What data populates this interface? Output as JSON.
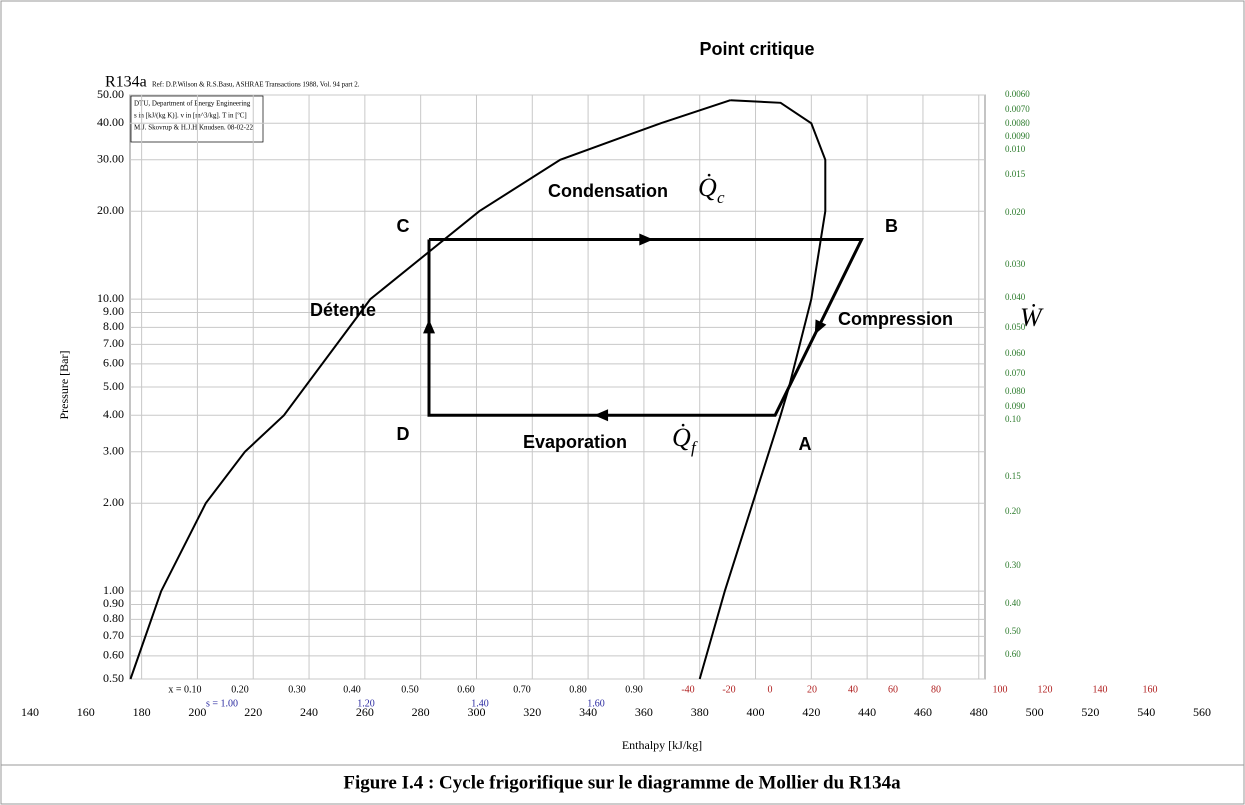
{
  "chart_data": {
    "type": "line",
    "title": "R134a",
    "subtitle": "Ref: D.P.Wilson & R.S.Basu, ASHRAE Transactions 1988, Vol. 94 part 2.",
    "info": [
      "DTU, Department of Energy Engineering",
      "s in [kJ/(kg K)]. v in [m^3/kg]. T in [ºC]",
      "M.J. Skovrup & H.J.H Knudsen. 08-02-22"
    ],
    "xlabel": "Enthalpy [kJ/kg]",
    "ylabel": "Pressure [Bar]",
    "xlim": [
      140,
      560
    ],
    "ylim": [
      0.5,
      50
    ],
    "log_y": true,
    "grid": true,
    "xticks": [
      140,
      160,
      180,
      200,
      220,
      240,
      260,
      280,
      300,
      320,
      340,
      360,
      380,
      400,
      420,
      440,
      460,
      480,
      500,
      520,
      540,
      560
    ],
    "yticks": [
      {
        "value": 0.5,
        "label": "0.50"
      },
      {
        "value": 0.6,
        "label": "0.60"
      },
      {
        "value": 0.7,
        "label": "0.70"
      },
      {
        "value": 0.8,
        "label": "0.80"
      },
      {
        "value": 0.9,
        "label": "0.90"
      },
      {
        "value": 1,
        "label": "1.00"
      },
      {
        "value": 2,
        "label": "2.00"
      },
      {
        "value": 3,
        "label": "3.00"
      },
      {
        "value": 4,
        "label": "4.00"
      },
      {
        "value": 5,
        "label": "5.00"
      },
      {
        "value": 6,
        "label": "6.00"
      },
      {
        "value": 7,
        "label": "7.00"
      },
      {
        "value": 8,
        "label": "8.00"
      },
      {
        "value": 9,
        "label": "9.00"
      },
      {
        "value": 10,
        "label": "10.00"
      },
      {
        "value": 20,
        "label": "20.00"
      },
      {
        "value": 30,
        "label": "30.00"
      },
      {
        "value": 40,
        "label": "40.00"
      },
      {
        "value": 50,
        "label": "50.00"
      }
    ],
    "series": [
      {
        "color": "#000000",
        "x": [
          176,
          187,
          203,
          217,
          231,
          262,
          301,
          330,
          366,
          391
        ],
        "values": [
          0.5,
          1,
          2,
          3,
          4,
          10,
          20,
          30,
          40,
          48
        ]
      },
      {
        "color": "#000000",
        "x": [
          391,
          409,
          420,
          425,
          425,
          420,
          412,
          409,
          399,
          389,
          380
        ],
        "values": [
          48,
          47,
          40,
          30,
          20,
          10,
          5,
          4,
          2,
          1,
          0.5
        ]
      },
      {
        "color": "#000000",
        "x": [
          283,
          438,
          407,
          283,
          283
        ],
        "values": [
          16,
          16,
          4,
          4,
          16
        ]
      }
    ],
    "points": [
      "C",
      "B",
      "A",
      "D"
    ],
    "annotations": [
      {
        "text": "Point critique"
      },
      {
        "text": "Condensation",
        "symbol": "Q̇",
        "sub": "c"
      },
      {
        "text": "Détente"
      },
      {
        "text": "Evaporation",
        "symbol": "Q̇",
        "sub": "f"
      },
      {
        "text": "Compression",
        "symbol": "Ẇ"
      }
    ],
    "quality_labels": [
      "x = 0.10",
      "0.20",
      "0.30",
      "0.40",
      "0.50",
      "0.60",
      "0.70",
      "0.80",
      "0.90"
    ],
    "entropy_labels": [
      "s = 1.00",
      "1.20",
      "1.40",
      "1.60"
    ],
    "temperature_labels": [
      "-40",
      "-20",
      "0",
      "20",
      "40",
      "60",
      "80",
      "100",
      "120",
      "140",
      "160"
    ],
    "volume_labels": [
      "0.0060",
      "0.0070",
      "0.0080",
      "0.0090",
      "0.010",
      "0.015",
      "0.020",
      "0.030",
      "0.040",
      "0.050",
      "0.060",
      "0.070",
      "0.080",
      "0.090",
      "0.10",
      "0.15",
      "0.20",
      "0.30",
      "0.40",
      "0.50",
      "0.60"
    ],
    "caption": "Figure I.4 : Cycle frigorifique sur le diagramme de Mollier du R134a"
  }
}
